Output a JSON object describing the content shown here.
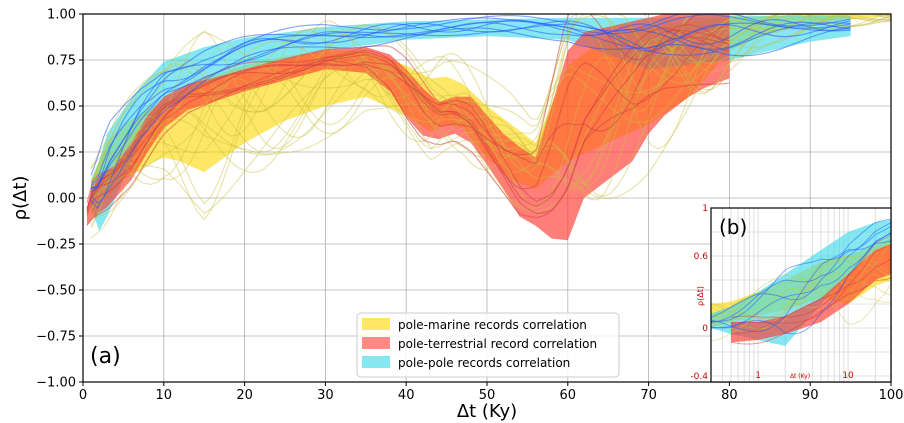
{
  "chart_data": [
    {
      "type": "area",
      "panel_label": "(a)",
      "xlabel": "Δt (Ky)",
      "ylabel": "ρ(Δt)",
      "xlim": [
        0,
        100
      ],
      "ylim": [
        -1.0,
        1.0
      ],
      "x_ticks": [
        "0",
        "10",
        "20",
        "30",
        "40",
        "50",
        "60",
        "70",
        "80",
        "90",
        "100"
      ],
      "y_ticks": [
        "−1.00",
        "−0.75",
        "−0.50",
        "−0.25",
        "0.00",
        "0.25",
        "0.50",
        "0.75",
        "1.00"
      ],
      "grid": true,
      "legend_position": "bottom-center",
      "colors": {
        "marine": "#ffd700",
        "terrestrial": "#ff3b30",
        "pole": "#33d9e6",
        "blue_lines": "#2255ff",
        "olive_lines": "#c8c040"
      },
      "series": [
        {
          "name": "pole-marine records correlation",
          "color": "#ffd700",
          "x": [
            1,
            3,
            5,
            8,
            10,
            12,
            15,
            20,
            25,
            30,
            35,
            40,
            43,
            45,
            47,
            50,
            53,
            56,
            60,
            65,
            70,
            75,
            80,
            85,
            90,
            95,
            100
          ],
          "upper": [
            0.1,
            0.3,
            0.4,
            0.48,
            0.52,
            0.58,
            0.65,
            0.72,
            0.77,
            0.8,
            0.8,
            0.72,
            0.65,
            0.66,
            0.62,
            0.5,
            0.4,
            0.3,
            0.72,
            0.88,
            0.93,
            0.96,
            0.98,
            0.99,
            1.0,
            1.0,
            1.0
          ],
          "lower": [
            -0.1,
            0.0,
            0.1,
            0.18,
            0.22,
            0.2,
            0.14,
            0.3,
            0.42,
            0.5,
            0.55,
            0.45,
            0.36,
            0.4,
            0.38,
            0.22,
            0.1,
            0.05,
            0.2,
            0.3,
            0.4,
            0.55,
            0.8,
            0.9,
            0.95,
            0.97,
            0.99
          ]
        },
        {
          "name": "pole-terrestrial record correlation",
          "color": "#ff3b30",
          "x": [
            0.5,
            1,
            2,
            3,
            4,
            6,
            8,
            10,
            13,
            16,
            20,
            25,
            30,
            35,
            38,
            40,
            42,
            44,
            46,
            48,
            50,
            52,
            54,
            56,
            58,
            60,
            62,
            65,
            68,
            70,
            72,
            75,
            77,
            80
          ],
          "upper": [
            -0.05,
            0.05,
            0.12,
            0.15,
            0.18,
            0.3,
            0.45,
            0.55,
            0.62,
            0.65,
            0.7,
            0.76,
            0.81,
            0.82,
            0.78,
            0.7,
            0.6,
            0.52,
            0.55,
            0.55,
            0.45,
            0.35,
            0.28,
            0.22,
            0.5,
            0.8,
            0.9,
            0.93,
            0.96,
            0.98,
            1.0,
            1.0,
            1.0,
            1.0
          ],
          "lower": [
            -0.15,
            -0.12,
            -0.08,
            -0.05,
            0.0,
            0.1,
            0.25,
            0.38,
            0.48,
            0.52,
            0.58,
            0.64,
            0.7,
            0.68,
            0.58,
            0.44,
            0.34,
            0.32,
            0.35,
            0.3,
            0.18,
            0.05,
            -0.1,
            -0.15,
            -0.22,
            -0.23,
            0.0,
            0.1,
            0.2,
            0.35,
            0.45,
            0.55,
            0.6,
            0.65
          ]
        },
        {
          "name": "pole-pole records correlation",
          "color": "#33d9e6",
          "x": [
            1,
            2,
            3,
            5,
            7,
            10,
            15,
            20,
            25,
            30,
            40,
            50,
            60,
            70,
            80,
            90,
            95
          ],
          "upper": [
            0.1,
            0.2,
            0.35,
            0.48,
            0.6,
            0.74,
            0.82,
            0.87,
            0.9,
            0.93,
            0.96,
            0.97,
            0.98,
            0.98,
            0.99,
            0.99,
            0.99
          ],
          "lower": [
            -0.05,
            -0.18,
            -0.1,
            0.1,
            0.3,
            0.48,
            0.62,
            0.7,
            0.75,
            0.8,
            0.86,
            0.88,
            0.86,
            0.7,
            0.75,
            0.85,
            0.88
          ]
        }
      ]
    },
    {
      "type": "area",
      "panel_label": "(b)",
      "xlabel": "Δt (Ky)",
      "ylabel": "ρ(Δt)",
      "xscale": "log",
      "x_ticks": [
        "1",
        "10"
      ],
      "y_ticks": [
        "1",
        "0.6",
        "0",
        "-0.4"
      ],
      "ylim": [
        -0.45,
        1.0
      ],
      "grid": true,
      "series": [
        {
          "name": "pole-marine records correlation",
          "color": "#ffd700",
          "x": [
            0.3,
            0.5,
            1,
            2,
            5,
            10,
            20,
            30
          ],
          "upper": [
            0.2,
            0.22,
            0.3,
            0.4,
            0.55,
            0.6,
            0.7,
            0.75
          ],
          "lower": [
            0.0,
            0.05,
            0.1,
            0.15,
            0.25,
            0.2,
            0.35,
            0.4
          ]
        },
        {
          "name": "pole-terrestrial record correlation",
          "color": "#ff3b30",
          "x": [
            0.5,
            1,
            2,
            5,
            10,
            20,
            30
          ],
          "upper": [
            0.05,
            0.05,
            0.1,
            0.25,
            0.45,
            0.65,
            0.7
          ],
          "lower": [
            -0.12,
            -0.1,
            -0.05,
            0.05,
            0.2,
            0.4,
            0.45
          ]
        },
        {
          "name": "pole-pole records correlation",
          "color": "#33d9e6",
          "x": [
            0.3,
            0.5,
            1,
            2,
            5,
            10,
            20,
            30
          ],
          "upper": [
            0.12,
            0.18,
            0.3,
            0.45,
            0.65,
            0.8,
            0.88,
            0.9
          ],
          "lower": [
            0.0,
            -0.05,
            -0.1,
            -0.15,
            0.2,
            0.45,
            0.65,
            0.7
          ]
        }
      ]
    }
  ]
}
